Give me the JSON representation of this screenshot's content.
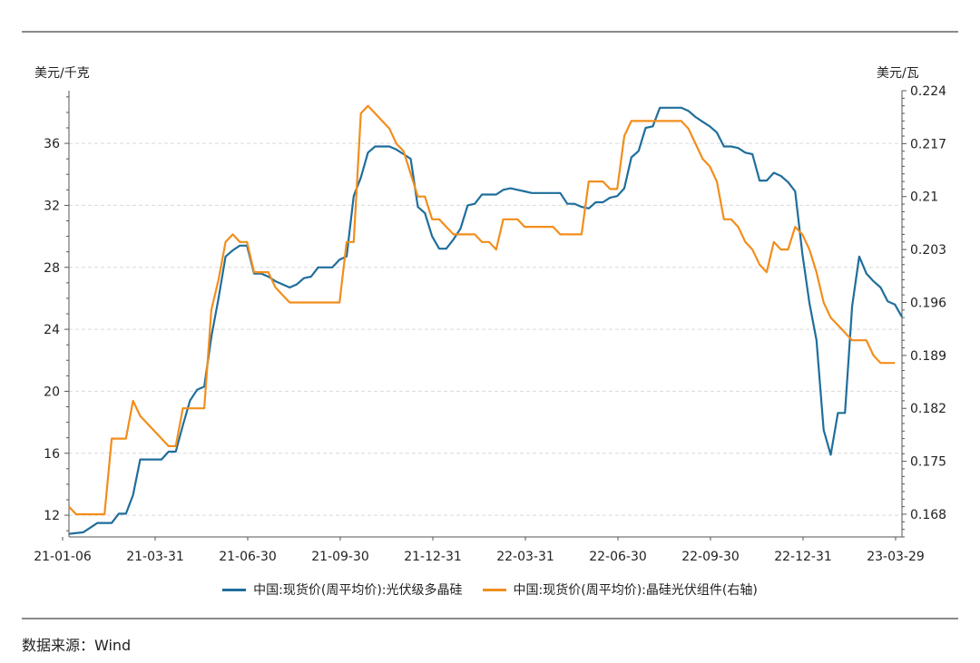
{
  "left_unit": "美元/千克",
  "right_unit": "美元/瓦",
  "source": "数据来源：Wind",
  "colors": {
    "polysilicon": "#1f6e9c",
    "module": "#f28e1c",
    "axis": "#555555",
    "grid": "#d9d9d9"
  },
  "chart_data": {
    "type": "line",
    "xlabels": [
      "21-01-06",
      "21-03-31",
      "21-06-30",
      "21-09-30",
      "21-12-31",
      "22-03-31",
      "22-06-30",
      "22-09-30",
      "22-12-31",
      "23-03-29"
    ],
    "x_range": [
      "2021-01-06",
      "2023-04-05"
    ],
    "y_left": {
      "ticks": [
        12,
        16,
        20,
        24,
        28,
        32,
        36
      ],
      "range": [
        10.6,
        39.4
      ]
    },
    "y_right": {
      "ticks": [
        0.168,
        0.175,
        0.182,
        0.189,
        0.196,
        0.203,
        0.21,
        0.217,
        0.224
      ],
      "range": [
        0.165,
        0.224
      ]
    },
    "grid": "horizontal dashed",
    "legend_position": "bottom",
    "series": [
      {
        "name": "中国:现货价(周平均价):光伏级多晶硅",
        "axis": "left",
        "points": [
          [
            "2021-01-06",
            10.8
          ],
          [
            "2021-01-20",
            10.9
          ],
          [
            "2021-01-27",
            11.2
          ],
          [
            "2021-02-03",
            11.5
          ],
          [
            "2021-02-17",
            11.5
          ],
          [
            "2021-02-24",
            12.1
          ],
          [
            "2021-03-03",
            12.1
          ],
          [
            "2021-03-10",
            13.3
          ],
          [
            "2021-03-17",
            15.6
          ],
          [
            "2021-03-24",
            15.6
          ],
          [
            "2021-03-31",
            15.6
          ],
          [
            "2021-04-07",
            15.6
          ],
          [
            "2021-04-14",
            16.1
          ],
          [
            "2021-04-21",
            16.1
          ],
          [
            "2021-04-28",
            17.8
          ],
          [
            "2021-05-05",
            19.4
          ],
          [
            "2021-05-12",
            20.1
          ],
          [
            "2021-05-19",
            20.3
          ],
          [
            "2021-05-26",
            23.5
          ],
          [
            "2021-06-02",
            26.0
          ],
          [
            "2021-06-09",
            28.7
          ],
          [
            "2021-06-16",
            29.1
          ],
          [
            "2021-06-23",
            29.4
          ],
          [
            "2021-06-30",
            29.4
          ],
          [
            "2021-07-07",
            27.6
          ],
          [
            "2021-07-14",
            27.6
          ],
          [
            "2021-07-21",
            27.4
          ],
          [
            "2021-07-28",
            27.1
          ],
          [
            "2021-08-04",
            26.9
          ],
          [
            "2021-08-11",
            26.7
          ],
          [
            "2021-08-18",
            26.9
          ],
          [
            "2021-08-25",
            27.3
          ],
          [
            "2021-09-01",
            27.4
          ],
          [
            "2021-09-08",
            28.0
          ],
          [
            "2021-09-15",
            28.0
          ],
          [
            "2021-09-22",
            28.0
          ],
          [
            "2021-09-29",
            28.5
          ],
          [
            "2021-10-06",
            28.7
          ],
          [
            "2021-10-13",
            32.6
          ],
          [
            "2021-10-20",
            33.8
          ],
          [
            "2021-10-27",
            35.4
          ],
          [
            "2021-11-03",
            35.8
          ],
          [
            "2021-11-10",
            35.8
          ],
          [
            "2021-11-17",
            35.8
          ],
          [
            "2021-11-24",
            35.6
          ],
          [
            "2021-12-01",
            35.3
          ],
          [
            "2021-12-08",
            35.0
          ],
          [
            "2021-12-15",
            31.9
          ],
          [
            "2021-12-22",
            31.5
          ],
          [
            "2021-12-29",
            30.0
          ],
          [
            "2022-01-05",
            29.2
          ],
          [
            "2022-01-12",
            29.2
          ],
          [
            "2022-01-19",
            29.8
          ],
          [
            "2022-01-26",
            30.5
          ],
          [
            "2022-02-02",
            32.0
          ],
          [
            "2022-02-09",
            32.1
          ],
          [
            "2022-02-16",
            32.7
          ],
          [
            "2022-02-23",
            32.7
          ],
          [
            "2022-03-02",
            32.7
          ],
          [
            "2022-03-09",
            33.0
          ],
          [
            "2022-03-16",
            33.1
          ],
          [
            "2022-03-23",
            33.0
          ],
          [
            "2022-03-30",
            32.9
          ],
          [
            "2022-04-06",
            32.8
          ],
          [
            "2022-04-13",
            32.8
          ],
          [
            "2022-04-20",
            32.8
          ],
          [
            "2022-04-27",
            32.8
          ],
          [
            "2022-05-04",
            32.8
          ],
          [
            "2022-05-11",
            32.1
          ],
          [
            "2022-05-18",
            32.1
          ],
          [
            "2022-05-25",
            31.9
          ],
          [
            "2022-06-01",
            31.8
          ],
          [
            "2022-06-08",
            32.2
          ],
          [
            "2022-06-15",
            32.2
          ],
          [
            "2022-06-22",
            32.5
          ],
          [
            "2022-06-29",
            32.6
          ],
          [
            "2022-07-06",
            33.1
          ],
          [
            "2022-07-13",
            35.1
          ],
          [
            "2022-07-20",
            35.5
          ],
          [
            "2022-07-27",
            37.0
          ],
          [
            "2022-08-03",
            37.1
          ],
          [
            "2022-08-10",
            38.3
          ],
          [
            "2022-08-17",
            38.3
          ],
          [
            "2022-08-24",
            38.3
          ],
          [
            "2022-08-31",
            38.3
          ],
          [
            "2022-09-07",
            38.1
          ],
          [
            "2022-09-14",
            37.7
          ],
          [
            "2022-09-21",
            37.4
          ],
          [
            "2022-09-28",
            37.1
          ],
          [
            "2022-10-05",
            36.7
          ],
          [
            "2022-10-12",
            35.8
          ],
          [
            "2022-10-19",
            35.8
          ],
          [
            "2022-10-26",
            35.7
          ],
          [
            "2022-11-02",
            35.4
          ],
          [
            "2022-11-09",
            35.3
          ],
          [
            "2022-11-16",
            33.6
          ],
          [
            "2022-11-23",
            33.6
          ],
          [
            "2022-11-30",
            34.1
          ],
          [
            "2022-12-07",
            33.9
          ],
          [
            "2022-12-14",
            33.5
          ],
          [
            "2022-12-21",
            32.9
          ],
          [
            "2022-12-28",
            28.9
          ],
          [
            "2023-01-04",
            25.7
          ],
          [
            "2023-01-11",
            23.3
          ],
          [
            "2023-01-18",
            17.5
          ],
          [
            "2023-01-25",
            15.9
          ],
          [
            "2023-02-01",
            18.6
          ],
          [
            "2023-02-08",
            18.6
          ],
          [
            "2023-02-15",
            25.5
          ],
          [
            "2023-02-22",
            28.7
          ],
          [
            "2023-03-01",
            27.6
          ],
          [
            "2023-03-08",
            27.1
          ],
          [
            "2023-03-15",
            26.7
          ],
          [
            "2023-03-22",
            25.8
          ],
          [
            "2023-03-29",
            25.6
          ],
          [
            "2023-04-05",
            24.8
          ]
        ]
      },
      {
        "name": "中国:现货价(周平均价):晶硅光伏组件(右轴)",
        "axis": "right",
        "points": [
          [
            "2021-01-06",
            0.169
          ],
          [
            "2021-01-13",
            0.168
          ],
          [
            "2021-02-03",
            0.168
          ],
          [
            "2021-02-10",
            0.168
          ],
          [
            "2021-02-17",
            0.178
          ],
          [
            "2021-03-03",
            0.178
          ],
          [
            "2021-03-10",
            0.183
          ],
          [
            "2021-03-17",
            0.181
          ],
          [
            "2021-03-31",
            0.179
          ],
          [
            "2021-04-14",
            0.177
          ],
          [
            "2021-04-21",
            0.177
          ],
          [
            "2021-04-28",
            0.182
          ],
          [
            "2021-05-12",
            0.182
          ],
          [
            "2021-05-19",
            0.182
          ],
          [
            "2021-05-26",
            0.195
          ],
          [
            "2021-06-02",
            0.199
          ],
          [
            "2021-06-09",
            0.204
          ],
          [
            "2021-06-16",
            0.205
          ],
          [
            "2021-06-23",
            0.204
          ],
          [
            "2021-06-30",
            0.204
          ],
          [
            "2021-07-07",
            0.2
          ],
          [
            "2021-07-14",
            0.2
          ],
          [
            "2021-07-21",
            0.2
          ],
          [
            "2021-07-28",
            0.198
          ],
          [
            "2021-08-04",
            0.197
          ],
          [
            "2021-08-11",
            0.196
          ],
          [
            "2021-09-29",
            0.196
          ],
          [
            "2021-10-06",
            0.204
          ],
          [
            "2021-10-13",
            0.204
          ],
          [
            "2021-10-20",
            0.221
          ],
          [
            "2021-10-27",
            0.222
          ],
          [
            "2021-11-03",
            0.221
          ],
          [
            "2021-11-10",
            0.22
          ],
          [
            "2021-11-17",
            0.219
          ],
          [
            "2021-11-24",
            0.217
          ],
          [
            "2021-12-01",
            0.216
          ],
          [
            "2021-12-08",
            0.213
          ],
          [
            "2021-12-15",
            0.21
          ],
          [
            "2021-12-22",
            0.21
          ],
          [
            "2021-12-29",
            0.207
          ],
          [
            "2022-01-05",
            0.207
          ],
          [
            "2022-01-12",
            0.206
          ],
          [
            "2022-01-19",
            0.205
          ],
          [
            "2022-02-02",
            0.205
          ],
          [
            "2022-02-09",
            0.205
          ],
          [
            "2022-02-16",
            0.204
          ],
          [
            "2022-02-23",
            0.204
          ],
          [
            "2022-03-02",
            0.203
          ],
          [
            "2022-03-09",
            0.207
          ],
          [
            "2022-03-23",
            0.207
          ],
          [
            "2022-03-30",
            0.206
          ],
          [
            "2022-04-27",
            0.206
          ],
          [
            "2022-05-04",
            0.205
          ],
          [
            "2022-05-25",
            0.205
          ],
          [
            "2022-06-01",
            0.212
          ],
          [
            "2022-06-15",
            0.212
          ],
          [
            "2022-06-22",
            0.211
          ],
          [
            "2022-06-29",
            0.211
          ],
          [
            "2022-07-06",
            0.218
          ],
          [
            "2022-07-13",
            0.22
          ],
          [
            "2022-08-31",
            0.22
          ],
          [
            "2022-09-07",
            0.219
          ],
          [
            "2022-09-14",
            0.217
          ],
          [
            "2022-09-21",
            0.215
          ],
          [
            "2022-09-28",
            0.214
          ],
          [
            "2022-10-05",
            0.212
          ],
          [
            "2022-10-12",
            0.207
          ],
          [
            "2022-10-19",
            0.207
          ],
          [
            "2022-10-26",
            0.206
          ],
          [
            "2022-11-02",
            0.204
          ],
          [
            "2022-11-09",
            0.203
          ],
          [
            "2022-11-16",
            0.201
          ],
          [
            "2022-11-23",
            0.2
          ],
          [
            "2022-11-30",
            0.204
          ],
          [
            "2022-12-07",
            0.203
          ],
          [
            "2022-12-14",
            0.203
          ],
          [
            "2022-12-21",
            0.206
          ],
          [
            "2022-12-28",
            0.205
          ],
          [
            "2023-01-04",
            0.203
          ],
          [
            "2023-01-11",
            0.2
          ],
          [
            "2023-01-18",
            0.196
          ],
          [
            "2023-01-25",
            0.194
          ],
          [
            "2023-02-01",
            0.193
          ],
          [
            "2023-02-08",
            0.192
          ],
          [
            "2023-02-15",
            0.191
          ],
          [
            "2023-02-22",
            0.191
          ],
          [
            "2023-03-01",
            0.191
          ],
          [
            "2023-03-08",
            0.189
          ],
          [
            "2023-03-15",
            0.188
          ],
          [
            "2023-03-22",
            0.188
          ],
          [
            "2023-03-29",
            0.188
          ]
        ]
      }
    ]
  }
}
